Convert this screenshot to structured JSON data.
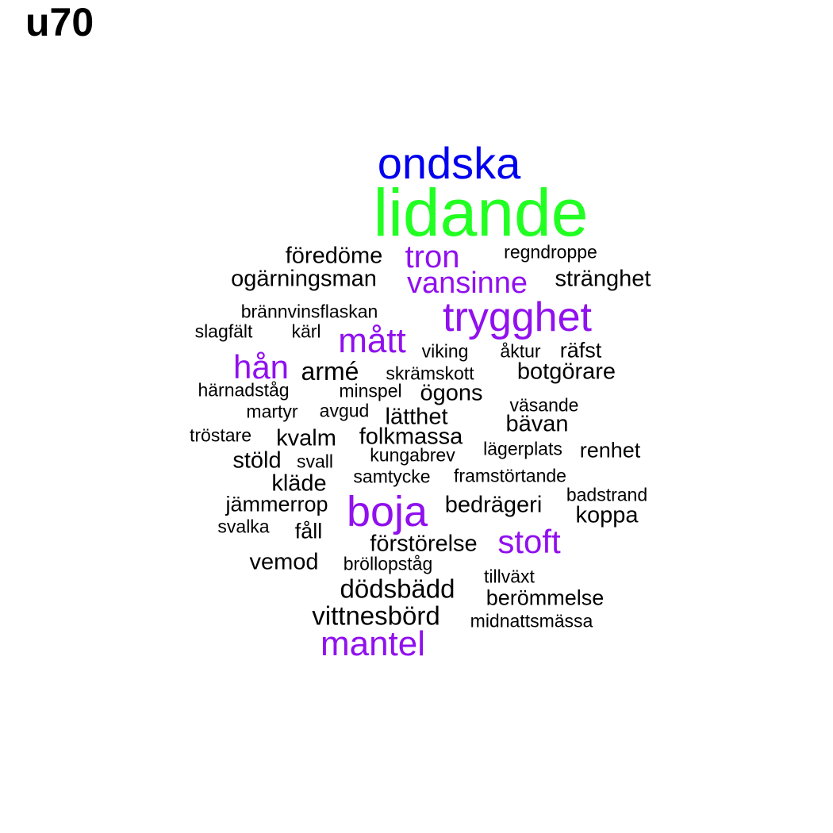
{
  "title": "u70",
  "colors": {
    "green": "#22ff22",
    "blue": "#0000ee",
    "purple": "#9010ee",
    "black": "#000000"
  },
  "words": [
    {
      "text": "ondska",
      "color": "blue"
    },
    {
      "text": "lidande",
      "color": "green"
    },
    {
      "text": "föredöme",
      "color": "black"
    },
    {
      "text": "tron",
      "color": "purple"
    },
    {
      "text": "regndroppe",
      "color": "black"
    },
    {
      "text": "ogärningsman",
      "color": "black"
    },
    {
      "text": "vansinne",
      "color": "purple"
    },
    {
      "text": "stränghet",
      "color": "black"
    },
    {
      "text": "brännvinsflaskan",
      "color": "black"
    },
    {
      "text": "trygghet",
      "color": "purple"
    },
    {
      "text": "slagfält",
      "color": "black"
    },
    {
      "text": "kärl",
      "color": "black"
    },
    {
      "text": "mått",
      "color": "purple"
    },
    {
      "text": "viking",
      "color": "black"
    },
    {
      "text": "åktur",
      "color": "black"
    },
    {
      "text": "räfst",
      "color": "black"
    },
    {
      "text": "hån",
      "color": "purple"
    },
    {
      "text": "armé",
      "color": "black"
    },
    {
      "text": "skrämskott",
      "color": "black"
    },
    {
      "text": "botgörare",
      "color": "black"
    },
    {
      "text": "härnadståg",
      "color": "black"
    },
    {
      "text": "minspel",
      "color": "black"
    },
    {
      "text": "ögons",
      "color": "black"
    },
    {
      "text": "väsande",
      "color": "black"
    },
    {
      "text": "martyr",
      "color": "black"
    },
    {
      "text": "avgud",
      "color": "black"
    },
    {
      "text": "lätthet",
      "color": "black"
    },
    {
      "text": "bävan",
      "color": "black"
    },
    {
      "text": "tröstare",
      "color": "black"
    },
    {
      "text": "kvalm",
      "color": "black"
    },
    {
      "text": "folkmassa",
      "color": "black"
    },
    {
      "text": "lägerplats",
      "color": "black"
    },
    {
      "text": "renhet",
      "color": "black"
    },
    {
      "text": "stöld",
      "color": "black"
    },
    {
      "text": "svall",
      "color": "black"
    },
    {
      "text": "kungabrev",
      "color": "black"
    },
    {
      "text": "kläde",
      "color": "black"
    },
    {
      "text": "samtycke",
      "color": "black"
    },
    {
      "text": "framstörtande",
      "color": "black"
    },
    {
      "text": "jämmerrop",
      "color": "black"
    },
    {
      "text": "boja",
      "color": "purple"
    },
    {
      "text": "bedrägeri",
      "color": "black"
    },
    {
      "text": "badstrand",
      "color": "black"
    },
    {
      "text": "koppa",
      "color": "black"
    },
    {
      "text": "svalka",
      "color": "black"
    },
    {
      "text": "fåll",
      "color": "black"
    },
    {
      "text": "förstörelse",
      "color": "black"
    },
    {
      "text": "stoft",
      "color": "purple"
    },
    {
      "text": "vemod",
      "color": "black"
    },
    {
      "text": "bröllopståg",
      "color": "black"
    },
    {
      "text": "tillväxt",
      "color": "black"
    },
    {
      "text": "dödsbädd",
      "color": "black"
    },
    {
      "text": "berömmelse",
      "color": "black"
    },
    {
      "text": "vittnesbörd",
      "color": "black"
    },
    {
      "text": "midnattsmässa",
      "color": "black"
    },
    {
      "text": "mantel",
      "color": "purple"
    }
  ]
}
